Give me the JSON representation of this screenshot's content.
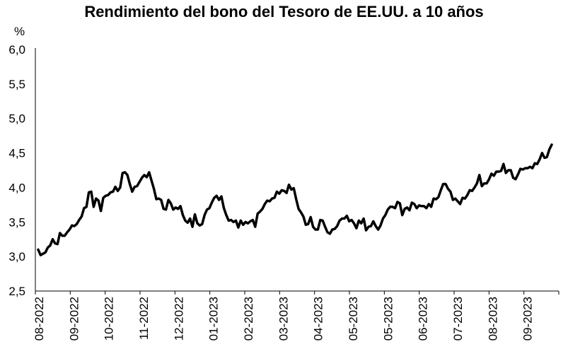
{
  "chart_data": {
    "type": "line",
    "title": "Rendimiento del bono del Tesoro de EE.UU. a 10 años",
    "y_unit": "%",
    "ylim": [
      2.5,
      6.0
    ],
    "yticks": [
      "6,0",
      "5,5",
      "5,0",
      "4,5",
      "4,0",
      "3,5",
      "3,0",
      "2,5"
    ],
    "xticks": [
      "08-2022",
      "09-2022",
      "10-2022",
      "11-2022",
      "12-2022",
      "01-2023",
      "02-2023",
      "03-2023",
      "04-2023",
      "05-2023",
      "05-2023",
      "06-2023",
      "07-2023",
      "08-2023",
      "09-2023"
    ],
    "grid": false,
    "line_color": "#000000",
    "series": [
      {
        "values": [
          3.1,
          3.02,
          3.04,
          3.06,
          3.13,
          3.16,
          3.25,
          3.19,
          3.18,
          3.34,
          3.3,
          3.3,
          3.35,
          3.39,
          3.45,
          3.44,
          3.47,
          3.53,
          3.58,
          3.7,
          3.72,
          3.93,
          3.94,
          3.72,
          3.84,
          3.81,
          3.66,
          3.85,
          3.88,
          3.89,
          3.93,
          3.94,
          4.01,
          3.95,
          4.0,
          4.21,
          4.22,
          4.18,
          4.05,
          3.94,
          4.01,
          4.02,
          4.08,
          4.14,
          4.18,
          4.15,
          4.22,
          4.1,
          3.98,
          3.83,
          3.84,
          3.82,
          3.69,
          3.68,
          3.82,
          3.77,
          3.68,
          3.71,
          3.69,
          3.73,
          3.6,
          3.52,
          3.49,
          3.55,
          3.43,
          3.61,
          3.48,
          3.45,
          3.47,
          3.6,
          3.68,
          3.7,
          3.78,
          3.85,
          3.88,
          3.82,
          3.87,
          3.7,
          3.6,
          3.52,
          3.53,
          3.5,
          3.52,
          3.42,
          3.52,
          3.46,
          3.5,
          3.48,
          3.51,
          3.53,
          3.43,
          3.62,
          3.65,
          3.69,
          3.76,
          3.81,
          3.8,
          3.84,
          3.85,
          3.94,
          3.91,
          3.96,
          3.95,
          3.92,
          4.04,
          3.97,
          3.99,
          3.83,
          3.69,
          3.64,
          3.58,
          3.46,
          3.47,
          3.57,
          3.43,
          3.39,
          3.39,
          3.53,
          3.52,
          3.43,
          3.35,
          3.33,
          3.39,
          3.4,
          3.44,
          3.52,
          3.55,
          3.55,
          3.59,
          3.51,
          3.53,
          3.48,
          3.41,
          3.52,
          3.48,
          3.55,
          3.38,
          3.43,
          3.44,
          3.51,
          3.44,
          3.39,
          3.45,
          3.55,
          3.6,
          3.68,
          3.72,
          3.72,
          3.7,
          3.79,
          3.77,
          3.6,
          3.69,
          3.71,
          3.67,
          3.78,
          3.76,
          3.7,
          3.74,
          3.73,
          3.73,
          3.7,
          3.76,
          3.72,
          3.84,
          3.83,
          3.86,
          3.96,
          4.05,
          4.05,
          3.98,
          3.94,
          3.82,
          3.84,
          3.8,
          3.76,
          3.85,
          3.84,
          3.89,
          3.96,
          3.95,
          4.0,
          4.06,
          4.18,
          4.02,
          4.06,
          4.06,
          4.12,
          4.2,
          4.17,
          4.23,
          4.23,
          4.24,
          4.34,
          4.21,
          4.25,
          4.25,
          4.14,
          4.12,
          4.19,
          4.27,
          4.26,
          4.28,
          4.28,
          4.3,
          4.28,
          4.35,
          4.34,
          4.41,
          4.5,
          4.43,
          4.44,
          4.55,
          4.62
        ]
      }
    ]
  }
}
